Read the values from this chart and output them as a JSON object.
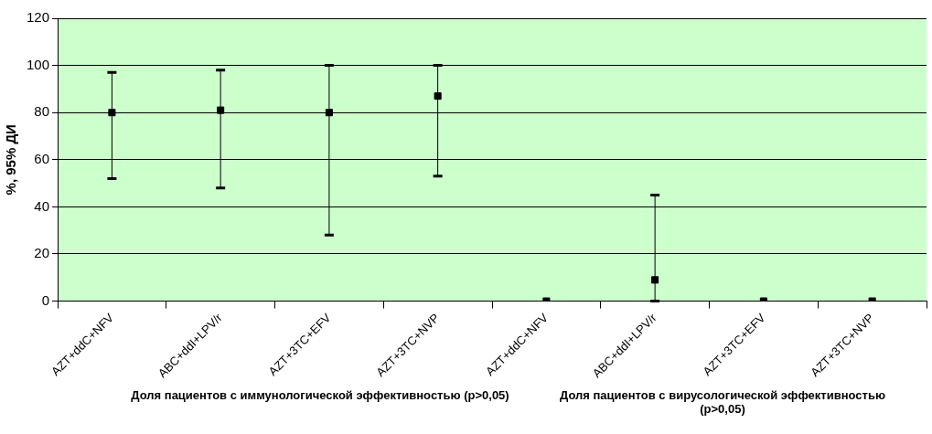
{
  "chart_data": {
    "type": "scatter",
    "ylabel": "%, 95% ДИ",
    "categories": [
      "AZT+ddC+NFV",
      "ABC+ddI+LPV/r",
      "AZT+3TC+EFV",
      "AZT+3TC+NVP",
      "AZT+ddC+NFV",
      "ABC+ddI+LPV/r",
      "AZT+3TC+EFV",
      "AZT+3TC+NVP"
    ],
    "series": [
      {
        "color": "#000000",
        "values": [
          80,
          81,
          80,
          87,
          0,
          9,
          0,
          0
        ],
        "errors": [
          [
            52,
            97
          ],
          [
            48,
            98
          ],
          [
            28,
            100
          ],
          [
            53,
            100
          ],
          null,
          [
            0,
            45
          ],
          null,
          null
        ]
      }
    ],
    "ylim": [
      0,
      120
    ],
    "yticks": [
      0,
      20,
      40,
      60,
      80,
      100,
      120
    ],
    "grid": "y",
    "marker": "square",
    "legend": false,
    "annotations": [
      "Доля пациентов с иммунологической эффективностью (p>0,05)",
      "Доля пациентов с вирусологической эффективностью (p>0,05)"
    ]
  }
}
